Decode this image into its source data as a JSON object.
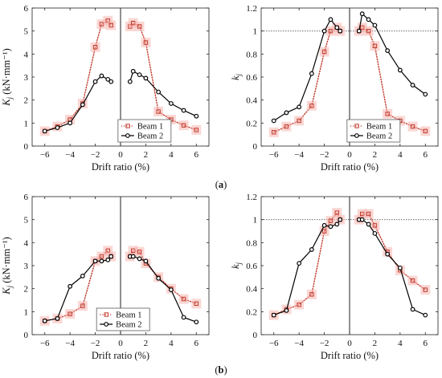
{
  "captions": [
    {
      "open": "(",
      "letter": "a",
      "close": ")"
    },
    {
      "open": "(",
      "letter": "b",
      "close": ")"
    }
  ],
  "chart_data": [
    {
      "type": "line",
      "xlabel": "Drift ratio (%)",
      "ylabel": "K_j (kN·mm⁻¹)",
      "xlim": [
        -7,
        7
      ],
      "ylim": [
        0,
        6
      ],
      "xticks": [
        -6,
        -4,
        -2,
        0,
        2,
        4,
        6
      ],
      "yticks": [
        0,
        1,
        2,
        3,
        4,
        5,
        6
      ],
      "legend": "bottom-right",
      "series": [
        {
          "name": "Beam 1",
          "style": "dotted-square",
          "color": "#c0392b",
          "neg": {
            "x": [
              -6,
              -5,
              -4,
              -3,
              -2,
              -1.5,
              -1,
              -0.75
            ],
            "y": [
              0.65,
              0.85,
              1.15,
              1.85,
              4.3,
              5.3,
              5.45,
              5.25
            ]
          },
          "pos": {
            "x": [
              0.75,
              1,
              1.5,
              2,
              3,
              4,
              5,
              6
            ],
            "y": [
              5.2,
              5.35,
              5.2,
              4.5,
              1.5,
              1.15,
              0.9,
              0.7
            ]
          }
        },
        {
          "name": "Beam 2",
          "style": "solid-circle",
          "color": "#000000",
          "neg": {
            "x": [
              -6,
              -5,
              -4,
              -3,
              -2,
              -1.5,
              -1,
              -0.75
            ],
            "y": [
              0.65,
              0.8,
              1.0,
              1.8,
              2.8,
              3.05,
              2.9,
              2.8
            ]
          },
          "pos": {
            "x": [
              0.75,
              1,
              1.5,
              2,
              3,
              4,
              5,
              6
            ],
            "y": [
              2.8,
              3.25,
              3.1,
              2.95,
              2.35,
              1.85,
              1.55,
              1.3
            ]
          }
        }
      ]
    },
    {
      "type": "line",
      "xlabel": "Drift ratio (%)",
      "ylabel": "k_j",
      "xlim": [
        -7,
        7
      ],
      "ylim": [
        0,
        1.2
      ],
      "xticks": [
        -6,
        -4,
        -2,
        0,
        2,
        4,
        6
      ],
      "yticks": [
        0,
        0.2,
        0.4,
        0.6,
        0.8,
        1,
        1.2
      ],
      "reference_line": 1,
      "legend": "bottom-right",
      "series": [
        {
          "name": "Beam 1",
          "style": "dotted-square",
          "color": "#c0392b",
          "neg": {
            "x": [
              -6,
              -5,
              -4,
              -3,
              -2,
              -1.5,
              -1,
              -0.75
            ],
            "y": [
              0.12,
              0.17,
              0.22,
              0.35,
              0.82,
              1.0,
              1.03,
              1.0
            ]
          },
          "pos": {
            "x": [
              0.75,
              1,
              1.5,
              2,
              3,
              4,
              5,
              6
            ],
            "y": [
              1.0,
              1.03,
              1.0,
              0.87,
              0.28,
              0.22,
              0.17,
              0.13
            ]
          }
        },
        {
          "name": "Beam 2",
          "style": "solid-circle",
          "color": "#000000",
          "neg": {
            "x": [
              -6,
              -5,
              -4,
              -3,
              -2,
              -1.5,
              -1,
              -0.75
            ],
            "y": [
              0.22,
              0.29,
              0.34,
              0.63,
              1.0,
              1.1,
              1.03,
              1.0
            ]
          },
          "pos": {
            "x": [
              0.75,
              1,
              1.5,
              2,
              3,
              4,
              5,
              6
            ],
            "y": [
              1.0,
              1.15,
              1.1,
              1.05,
              0.83,
              0.66,
              0.53,
              0.45
            ]
          }
        }
      ]
    },
    {
      "type": "line",
      "xlabel": "Drift ratio (%)",
      "ylabel": "K_j (kN·mm⁻¹)",
      "xlim": [
        -7,
        7
      ],
      "ylim": [
        0,
        6
      ],
      "xticks": [
        -6,
        -4,
        -2,
        0,
        2,
        4,
        6
      ],
      "yticks": [
        0,
        1,
        2,
        3,
        4,
        5,
        6
      ],
      "legend": "bottom-center",
      "series": [
        {
          "name": "Beam 1",
          "style": "dotted-square",
          "color": "#c0392b",
          "neg": {
            "x": [
              -6,
              -5,
              -4,
              -3,
              -2,
              -1.5,
              -1,
              -0.75
            ],
            "y": [
              0.6,
              0.7,
              0.9,
              1.25,
              3.2,
              3.4,
              3.65,
              3.4
            ]
          },
          "pos": {
            "x": [
              0.75,
              1,
              1.5,
              2,
              3,
              4,
              5,
              6
            ],
            "y": [
              3.4,
              3.65,
              3.6,
              3.1,
              2.5,
              2.0,
              1.55,
              1.35
            ]
          }
        },
        {
          "name": "Beam 2",
          "style": "solid-circle",
          "color": "#000000",
          "neg": {
            "x": [
              -6,
              -5,
              -4,
              -3,
              -2,
              -1.5,
              -1,
              -0.75
            ],
            "y": [
              0.6,
              0.7,
              2.1,
              2.55,
              3.2,
              3.2,
              3.25,
              3.4
            ]
          },
          "pos": {
            "x": [
              0.75,
              1,
              1.5,
              2,
              3,
              4,
              5,
              6
            ],
            "y": [
              3.4,
              3.4,
              3.3,
              3.2,
              2.45,
              1.95,
              0.75,
              0.55
            ]
          }
        }
      ]
    },
    {
      "type": "line",
      "xlabel": "Drift ratio (%)",
      "ylabel": "k_j",
      "xlim": [
        -7,
        7
      ],
      "ylim": [
        0,
        1.2
      ],
      "xticks": [
        -6,
        -4,
        -2,
        0,
        2,
        4,
        6
      ],
      "yticks": [
        0,
        0.2,
        0.4,
        0.6,
        0.8,
        1,
        1.2
      ],
      "reference_line": 1,
      "legend": "none",
      "series": [
        {
          "name": "Beam 1",
          "style": "dotted-square",
          "color": "#c0392b",
          "neg": {
            "x": [
              -6,
              -5,
              -4,
              -3,
              -2,
              -1.5,
              -1,
              -0.75
            ],
            "y": [
              0.17,
              0.22,
              0.26,
              0.35,
              0.9,
              0.99,
              1.06,
              1.0
            ]
          },
          "pos": {
            "x": [
              0.75,
              1,
              1.5,
              2,
              3,
              4,
              5,
              6
            ],
            "y": [
              1.0,
              1.05,
              1.05,
              0.95,
              0.72,
              0.56,
              0.47,
              0.39
            ]
          }
        },
        {
          "name": "Beam 2",
          "style": "solid-circle",
          "color": "#000000",
          "neg": {
            "x": [
              -6,
              -5,
              -4,
              -3,
              -2,
              -1.5,
              -1,
              -0.75
            ],
            "y": [
              0.17,
              0.21,
              0.62,
              0.74,
              0.95,
              0.94,
              0.96,
              1.0
            ]
          },
          "pos": {
            "x": [
              0.75,
              1,
              1.5,
              2,
              3,
              4,
              5,
              6
            ],
            "y": [
              1.0,
              1.0,
              0.96,
              0.88,
              0.7,
              0.58,
              0.22,
              0.17
            ]
          }
        }
      ]
    }
  ]
}
